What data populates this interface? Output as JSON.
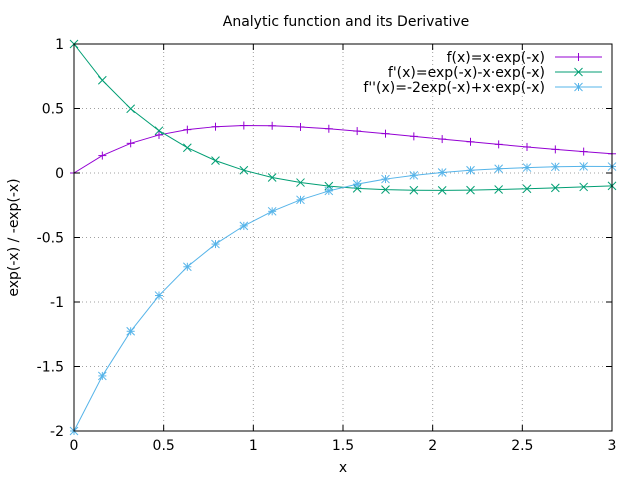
{
  "chart_data": {
    "type": "line",
    "title": "Analytic function and its Derivative",
    "xlabel": "x",
    "ylabel": "exp(-x) / -exp(-x)",
    "xlim": [
      0,
      3
    ],
    "ylim": [
      -2,
      1
    ],
    "xticks": [
      "0",
      "0.5",
      "1",
      "1.5",
      "2",
      "2.5",
      "3"
    ],
    "yticks": [
      "-2",
      "-1.5",
      "-1",
      "-0.5",
      "0",
      "0.5",
      "1"
    ],
    "grid": true,
    "legend_position": "top-right",
    "series": [
      {
        "name": "f(x)=x·exp(-x)",
        "color": "#9400d3",
        "marker": "plus",
        "x": [
          0,
          0.158,
          0.316,
          0.474,
          0.632,
          0.789,
          0.947,
          1.105,
          1.263,
          1.421,
          1.579,
          1.737,
          1.895,
          2.053,
          2.211,
          2.368,
          2.526,
          2.684,
          2.842,
          3.0
        ],
        "y": [
          0,
          0.135,
          0.23,
          0.295,
          0.336,
          0.359,
          0.368,
          0.366,
          0.357,
          0.343,
          0.325,
          0.305,
          0.284,
          0.263,
          0.242,
          0.222,
          0.202,
          0.183,
          0.166,
          0.149
        ]
      },
      {
        "name": "f'(x)=exp(-x)-x·exp(-x)",
        "color": "#009e73",
        "marker": "cross",
        "x": [
          0,
          0.158,
          0.316,
          0.474,
          0.632,
          0.789,
          0.947,
          1.105,
          1.263,
          1.421,
          1.579,
          1.737,
          1.895,
          2.053,
          2.211,
          2.368,
          2.526,
          2.684,
          2.842,
          3.0
        ],
        "y": [
          1,
          0.719,
          0.498,
          0.328,
          0.196,
          0.096,
          0.021,
          -0.035,
          -0.074,
          -0.102,
          -0.119,
          -0.129,
          -0.134,
          -0.135,
          -0.133,
          -0.128,
          -0.122,
          -0.115,
          -0.108,
          -0.1
        ]
      },
      {
        "name": "f''(x)=-2exp(-x)+x·exp(-x)",
        "color": "#56b4e9",
        "marker": "star",
        "x": [
          0,
          0.158,
          0.316,
          0.474,
          0.632,
          0.789,
          0.947,
          1.105,
          1.263,
          1.421,
          1.579,
          1.737,
          1.895,
          2.053,
          2.211,
          2.368,
          2.526,
          2.684,
          2.842,
          3.0
        ],
        "y": [
          -2,
          -1.573,
          -1.227,
          -0.95,
          -0.727,
          -0.551,
          -0.41,
          -0.297,
          -0.208,
          -0.139,
          -0.086,
          -0.047,
          -0.018,
          0.004,
          0.021,
          0.033,
          0.042,
          0.048,
          0.051,
          0.05
        ]
      }
    ]
  }
}
